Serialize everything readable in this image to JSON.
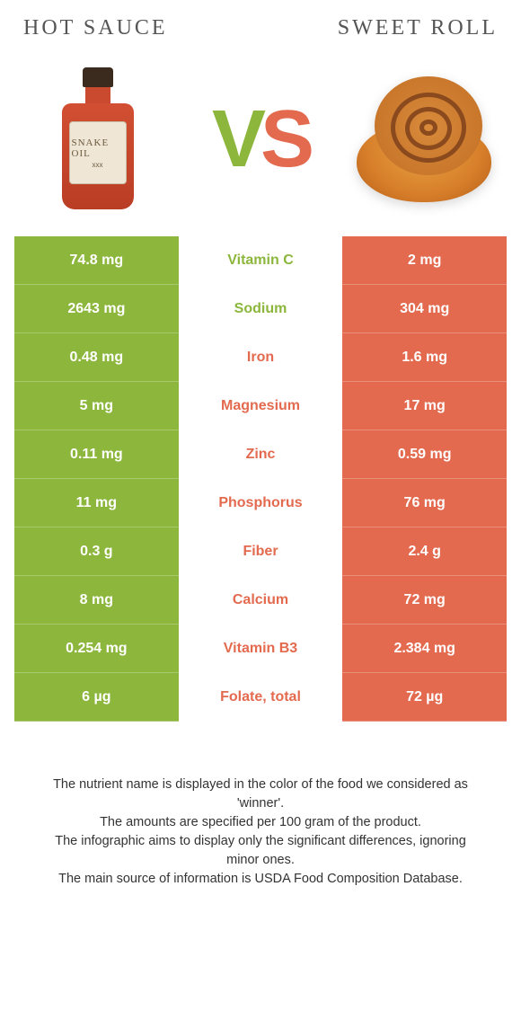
{
  "header": {
    "left_title": "Hot sauce",
    "right_title": "Sweet roll"
  },
  "vs": {
    "v": "V",
    "s": "S"
  },
  "bottle_label": {
    "brand": "SNAKE OIL",
    "sub": "xxx"
  },
  "colors": {
    "left": "#8cb63c",
    "right": "#e36a4e",
    "left_text": "#8cb63c",
    "right_text": "#e36a4e"
  },
  "rows": [
    {
      "left": "74.8 mg",
      "label": "Vitamin C",
      "right": "2 mg",
      "winner": "left"
    },
    {
      "left": "2643 mg",
      "label": "Sodium",
      "right": "304 mg",
      "winner": "left"
    },
    {
      "left": "0.48 mg",
      "label": "Iron",
      "right": "1.6 mg",
      "winner": "right"
    },
    {
      "left": "5 mg",
      "label": "Magnesium",
      "right": "17 mg",
      "winner": "right"
    },
    {
      "left": "0.11 mg",
      "label": "Zinc",
      "right": "0.59 mg",
      "winner": "right"
    },
    {
      "left": "11 mg",
      "label": "Phosphorus",
      "right": "76 mg",
      "winner": "right"
    },
    {
      "left": "0.3 g",
      "label": "Fiber",
      "right": "2.4 g",
      "winner": "right"
    },
    {
      "left": "8 mg",
      "label": "Calcium",
      "right": "72 mg",
      "winner": "right"
    },
    {
      "left": "0.254 mg",
      "label": "Vitamin B3",
      "right": "2.384 mg",
      "winner": "right"
    },
    {
      "left": "6 µg",
      "label": "Folate, total",
      "right": "72 µg",
      "winner": "right"
    }
  ],
  "footer": {
    "line1": "The nutrient name is displayed in the color of the food we considered as 'winner'.",
    "line2": "The amounts are specified per 100 gram of the product.",
    "line3": "The infographic aims to display only the significant differences, ignoring minor ones.",
    "line4": "The main source of information is USDA Food Composition Database."
  }
}
